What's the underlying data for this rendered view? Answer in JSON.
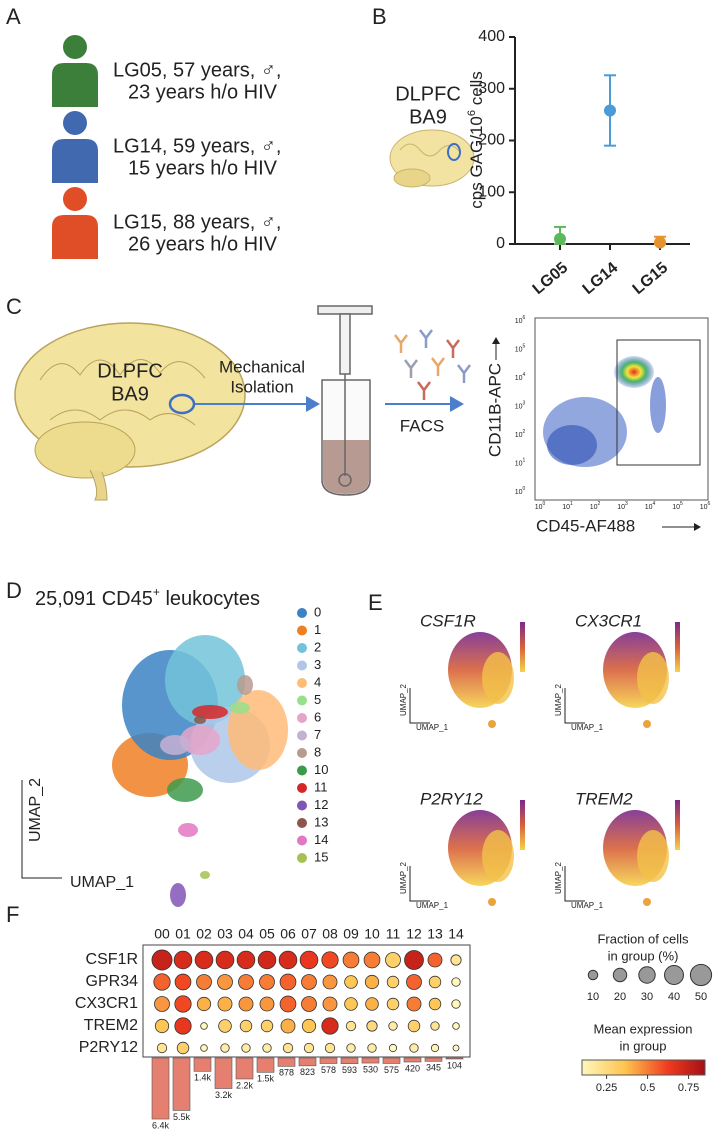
{
  "panel_labels": [
    "A",
    "B",
    "C",
    "D",
    "E",
    "F"
  ],
  "donors": [
    {
      "line1": "LG05, 57 years, ♂,",
      "line2": "23 years h/o HIV",
      "color": "#3c7f3a"
    },
    {
      "line1": "LG14, 59 years, ♂,",
      "line2": "15 years h/o HIV",
      "color": "#4169b0"
    },
    {
      "line1": "LG15, 88 years, ♂,",
      "line2": "26 years h/o HIV",
      "color": "#e04e27"
    }
  ],
  "region": [
    "DLPFC",
    "BA9"
  ],
  "panel_c": {
    "step1": [
      "Mechanical",
      "Isolation"
    ],
    "step2": "FACS",
    "ylabel": "CD11B-APC",
    "xlabel": "CD45-AF488",
    "tick_base": "10",
    "tick_exponents": [
      "0",
      "1",
      "2",
      "3",
      "4",
      "5",
      "6"
    ]
  },
  "panel_d": {
    "title": "25,091 CD45",
    "title_sup": "+",
    "title_end": " leukocytes",
    "clusters": [
      "0",
      "1",
      "2",
      "3",
      "4",
      "5",
      "6",
      "7",
      "8",
      "10",
      "11",
      "12",
      "13",
      "14",
      "15"
    ],
    "colors": [
      "#3b83c4",
      "#ef7f23",
      "#72c3d9",
      "#aec7e8",
      "#ffbb78",
      "#98df8a",
      "#e6a4c9",
      "#c5b0d5",
      "#b89a8f",
      "#3d9a4c",
      "#d62728",
      "#8155b5",
      "#8c564b",
      "#e377c2",
      "#a5c152"
    ],
    "xlabel": "UMAP_1",
    "ylabel": "UMAP_2"
  },
  "panel_e": {
    "genes": [
      "CSF1R",
      "CX3CR1",
      "P2RY12",
      "TREM2"
    ],
    "xlabel": "UMAP_1",
    "ylabel": "UMAP_2"
  },
  "chart_data": [
    {
      "type": "errorbar",
      "ylabel": "cps GAG/10",
      "ylabel_sup": "6",
      "ylabel_end": " cells",
      "categories": [
        "LG05",
        "LG14",
        "LG15"
      ],
      "values": [
        10,
        258,
        3
      ],
      "errors": [
        23,
        68,
        11
      ],
      "colors": [
        "#5cb85c",
        "#4a9bd6",
        "#e8922f"
      ],
      "ylim": [
        0,
        400
      ],
      "yticks": [
        0,
        100,
        200,
        300,
        400
      ]
    },
    {
      "type": "dotplot",
      "genes": [
        "CSF1R",
        "GPR34",
        "CX3CR1",
        "TREM2",
        "P2RY12"
      ],
      "clusters": [
        "00",
        "01",
        "02",
        "03",
        "04",
        "05",
        "06",
        "07",
        "08",
        "09",
        "10",
        "11",
        "12",
        "13",
        "14"
      ],
      "fraction": [
        [
          45,
          35,
          35,
          35,
          35,
          35,
          35,
          35,
          30,
          28,
          28,
          25,
          40,
          22,
          12
        ],
        [
          30,
          28,
          25,
          25,
          25,
          25,
          28,
          25,
          22,
          18,
          20,
          15,
          25,
          15,
          8
        ],
        [
          25,
          30,
          20,
          22,
          22,
          22,
          28,
          25,
          22,
          18,
          18,
          15,
          22,
          15,
          8
        ],
        [
          20,
          30,
          5,
          18,
          15,
          15,
          22,
          20,
          30,
          10,
          12,
          8,
          15,
          8,
          5
        ],
        [
          10,
          15,
          5,
          8,
          8,
          8,
          10,
          10,
          10,
          8,
          8,
          6,
          8,
          6,
          4
        ]
      ],
      "expression": [
        [
          0.75,
          0.7,
          0.7,
          0.7,
          0.7,
          0.72,
          0.7,
          0.65,
          0.6,
          0.5,
          0.5,
          0.3,
          0.75,
          0.55,
          0.2
        ],
        [
          0.55,
          0.6,
          0.5,
          0.45,
          0.5,
          0.5,
          0.55,
          0.5,
          0.45,
          0.35,
          0.4,
          0.3,
          0.55,
          0.3,
          0.1
        ],
        [
          0.45,
          0.6,
          0.4,
          0.4,
          0.45,
          0.45,
          0.55,
          0.5,
          0.45,
          0.35,
          0.4,
          0.3,
          0.5,
          0.35,
          0.1
        ],
        [
          0.35,
          0.65,
          0.1,
          0.3,
          0.3,
          0.3,
          0.4,
          0.35,
          0.7,
          0.2,
          0.25,
          0.15,
          0.3,
          0.2,
          0.1
        ],
        [
          0.2,
          0.3,
          0.1,
          0.15,
          0.15,
          0.15,
          0.2,
          0.2,
          0.2,
          0.15,
          0.15,
          0.1,
          0.15,
          0.12,
          0.1
        ]
      ],
      "size_title": [
        "Fraction of cells",
        "in group (%)"
      ],
      "size_ticks": [
        10,
        20,
        30,
        40,
        50
      ],
      "color_title": [
        "Mean expression",
        "in group"
      ],
      "color_lim": [
        0.1,
        0.85
      ],
      "color_ticks": [
        0.25,
        0.5,
        0.75
      ]
    },
    {
      "type": "bar",
      "values": [
        6400,
        5500,
        1400,
        3200,
        2200,
        1500,
        878,
        823,
        578,
        593,
        530,
        575,
        420,
        345,
        104
      ],
      "value_labels": [
        "6.4k",
        "5.5k",
        "1.4k",
        "3.2k",
        "2.2k",
        "1.5k",
        "878",
        "823",
        "578",
        "593",
        "530",
        "575",
        "420",
        "345",
        "104"
      ],
      "color": "#e58070",
      "ylim": [
        0,
        6500
      ]
    }
  ]
}
